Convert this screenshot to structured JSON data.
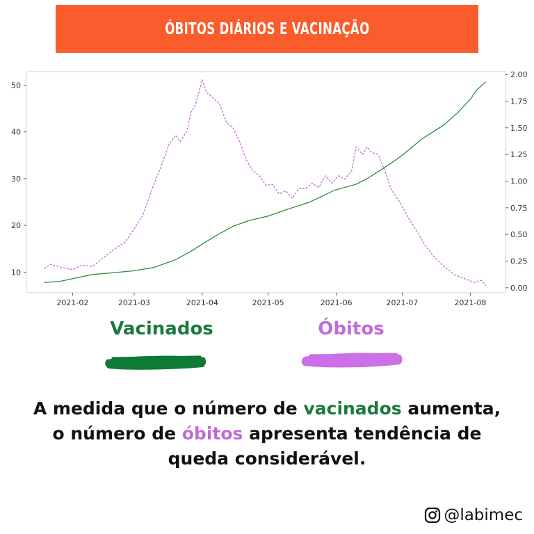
{
  "title": "ÓBITOS DIÁRIOS E VACINAÇÃO",
  "legend": {
    "vaccinated_label": "Vacinados",
    "deaths_label": "Óbitos"
  },
  "caption": {
    "part1": "A medida que o número de ",
    "vaccinated_word": "vacinados",
    "part2": " aumenta, o número de ",
    "deaths_word": "óbitos",
    "part3": " apresenta tendência de queda considerável."
  },
  "credit": {
    "handle": "@labimec",
    "icon": "instagram-icon"
  },
  "colors": {
    "banner": "#fa5c2b",
    "vaccinated": "#2e8b3e",
    "deaths": "#c36ad9",
    "vaccinated_legend": "#1a7a3e",
    "deaths_legend": "#c36ad9"
  },
  "chart_data": {
    "type": "line",
    "x_tick_labels": [
      "2021-02",
      "2021-03",
      "2021-04",
      "2021-05",
      "2021-06",
      "2021-07",
      "2021-08"
    ],
    "x_ticks": [
      "2021-02-01",
      "2021-03-01",
      "2021-04-01",
      "2021-05-01",
      "2021-06-01",
      "2021-07-01",
      "2021-08-01"
    ],
    "xlim": [
      "2021-01-11",
      "2021-08-17"
    ],
    "y_left_ticks": [
      10,
      20,
      30,
      40,
      50
    ],
    "y_left_lim": [
      5.6,
      52.9
    ],
    "y_right_ticks": [
      "0.00",
      "0.25",
      "0.50",
      "0.75",
      "1.00",
      "1.25",
      "1.50",
      "1.75",
      "2.00"
    ],
    "y_right_lim": [
      -0.0467,
      2.0267
    ],
    "grid": false,
    "series": [
      {
        "style": "solid",
        "axis": "left",
        "x": [
          "2021-01-19",
          "2021-01-26",
          "2021-02-01",
          "2021-02-10",
          "2021-02-20",
          "2021-03-01",
          "2021-03-10",
          "2021-03-20",
          "2021-03-27",
          "2021-04-01",
          "2021-04-08",
          "2021-04-15",
          "2021-04-22",
          "2021-05-01",
          "2021-05-10",
          "2021-05-20",
          "2021-05-31",
          "2021-06-10",
          "2021-06-15",
          "2021-06-20",
          "2021-06-25",
          "2021-07-01",
          "2021-07-10",
          "2021-07-20",
          "2021-07-26",
          "2021-08-01",
          "2021-08-04",
          "2021-08-08"
        ],
        "values": [
          7.8,
          8.0,
          8.6,
          9.5,
          9.9,
          10.3,
          11.0,
          12.7,
          14.5,
          16.0,
          18.0,
          19.8,
          21.0,
          22.0,
          23.5,
          25.0,
          27.5,
          28.8,
          30.0,
          31.5,
          33.0,
          35.0,
          38.5,
          41.5,
          44.0,
          47.0,
          49.0,
          50.7
        ]
      },
      {
        "style": "dashed",
        "axis": "right",
        "x": [
          "2021-01-19",
          "2021-01-22",
          "2021-01-27",
          "2021-02-01",
          "2021-02-05",
          "2021-02-10",
          "2021-02-15",
          "2021-02-20",
          "2021-02-25",
          "2021-03-01",
          "2021-03-05",
          "2021-03-10",
          "2021-03-13",
          "2021-03-17",
          "2021-03-20",
          "2021-03-22",
          "2021-03-25",
          "2021-03-27",
          "2021-03-29",
          "2021-04-01",
          "2021-04-03",
          "2021-04-06",
          "2021-04-09",
          "2021-04-12",
          "2021-04-15",
          "2021-04-18",
          "2021-04-21",
          "2021-04-24",
          "2021-04-27",
          "2021-04-30",
          "2021-05-03",
          "2021-05-06",
          "2021-05-09",
          "2021-05-12",
          "2021-05-15",
          "2021-05-18",
          "2021-05-21",
          "2021-05-24",
          "2021-05-27",
          "2021-05-30",
          "2021-06-02",
          "2021-06-05",
          "2021-06-08",
          "2021-06-10",
          "2021-06-13",
          "2021-06-15",
          "2021-06-17",
          "2021-06-20",
          "2021-06-23",
          "2021-06-26",
          "2021-06-30",
          "2021-07-04",
          "2021-07-08",
          "2021-07-12",
          "2021-07-16",
          "2021-07-20",
          "2021-07-25",
          "2021-07-30",
          "2021-08-03",
          "2021-08-06",
          "2021-08-08"
        ],
        "values": [
          0.18,
          0.22,
          0.19,
          0.17,
          0.21,
          0.2,
          0.28,
          0.36,
          0.43,
          0.55,
          0.68,
          0.97,
          1.12,
          1.35,
          1.43,
          1.37,
          1.47,
          1.65,
          1.72,
          1.95,
          1.83,
          1.78,
          1.72,
          1.55,
          1.5,
          1.37,
          1.2,
          1.1,
          1.05,
          0.96,
          0.97,
          0.88,
          0.91,
          0.84,
          0.93,
          0.93,
          0.98,
          0.94,
          1.05,
          0.98,
          1.05,
          1.02,
          1.1,
          1.32,
          1.25,
          1.32,
          1.27,
          1.25,
          1.1,
          0.92,
          0.8,
          0.65,
          0.52,
          0.38,
          0.28,
          0.2,
          0.12,
          0.08,
          0.05,
          0.07,
          0.02
        ]
      }
    ]
  }
}
